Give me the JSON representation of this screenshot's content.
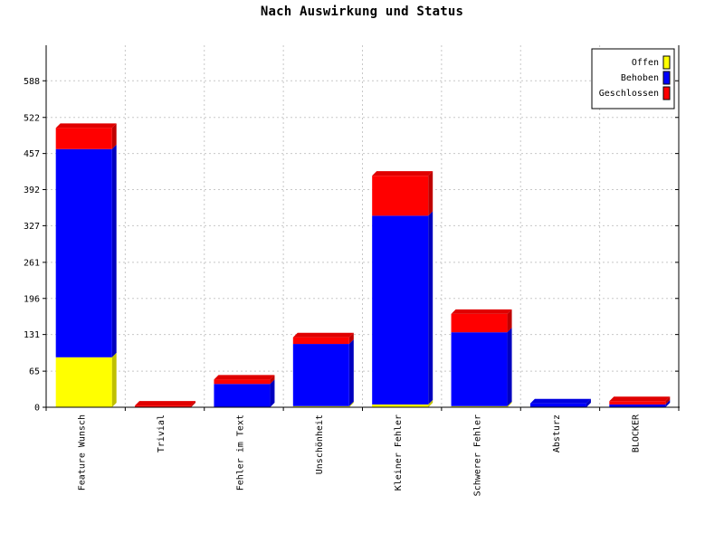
{
  "chart_data": {
    "type": "bar",
    "stacked": true,
    "style": "3d",
    "title": "Nach Auswirkung und Status",
    "xlabel": "",
    "ylabel": "",
    "ylim": [
      0,
      652
    ],
    "y_ticks": [
      0,
      65,
      131,
      196,
      261,
      327,
      392,
      457,
      522,
      588
    ],
    "grid": true,
    "legend_position": "top-right",
    "categories": [
      "Feature Wunsch",
      "Trivial",
      "Fehler im Text",
      "Unschönheit",
      "Kleiner Fehler",
      "Schwerer Fehler",
      "Absturz",
      "BLOCKER"
    ],
    "series": [
      {
        "name": "Offen",
        "color": "#ffff00",
        "values": [
          90,
          0,
          0,
          2,
          5,
          2,
          0,
          0
        ]
      },
      {
        "name": "Behoben",
        "color": "#0000ff",
        "values": [
          375,
          0,
          42,
          112,
          340,
          133,
          7,
          5
        ]
      },
      {
        "name": "Geschlossen",
        "color": "#ff0000",
        "values": [
          38,
          3,
          8,
          12,
          72,
          33,
          0,
          6
        ]
      }
    ]
  }
}
